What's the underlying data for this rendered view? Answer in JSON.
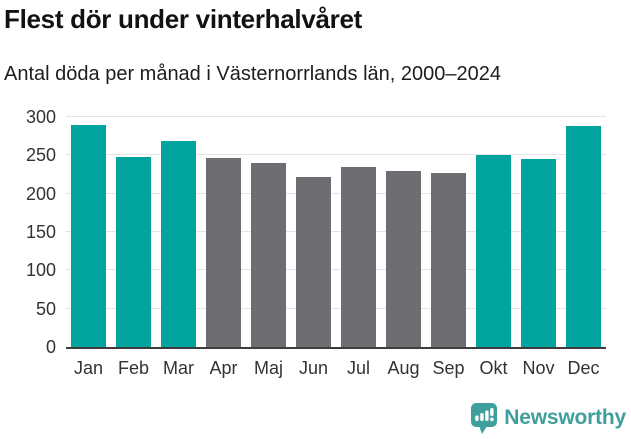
{
  "header": {
    "title": "Flest dör under vinterhalvåret",
    "subtitle": "Antal döda per månad i Västernorrlands län, 2000–2024"
  },
  "chart_data": {
    "type": "bar",
    "title": "Flest dör under vinterhalvåret",
    "subtitle": "Antal döda per månad i Västernorrlands län, 2000–2024",
    "categories": [
      "Jan",
      "Feb",
      "Mar",
      "Apr",
      "Maj",
      "Jun",
      "Jul",
      "Aug",
      "Sep",
      "Okt",
      "Nov",
      "Dec"
    ],
    "values": [
      289,
      248,
      269,
      246,
      240,
      222,
      235,
      230,
      227,
      250,
      245,
      288
    ],
    "highlighted": [
      true,
      true,
      true,
      false,
      false,
      false,
      false,
      false,
      false,
      true,
      true,
      true
    ],
    "xlabel": "",
    "ylabel": "",
    "ylim": [
      0,
      300
    ],
    "yticks": [
      0,
      50,
      100,
      150,
      200,
      250,
      300
    ],
    "grid": true,
    "legend": false,
    "colors": {
      "highlight": "#00a49c",
      "base": "#6d6d72",
      "gridline": "#e4e4e4",
      "axis": "#3d3d3d",
      "tick_text": "#333333"
    }
  },
  "footer": {
    "brand": "Newsworthy",
    "logo_icon": "newsworthy-speech-bubble-bar-chart-icon",
    "brand_color": "#3f9f9c"
  }
}
